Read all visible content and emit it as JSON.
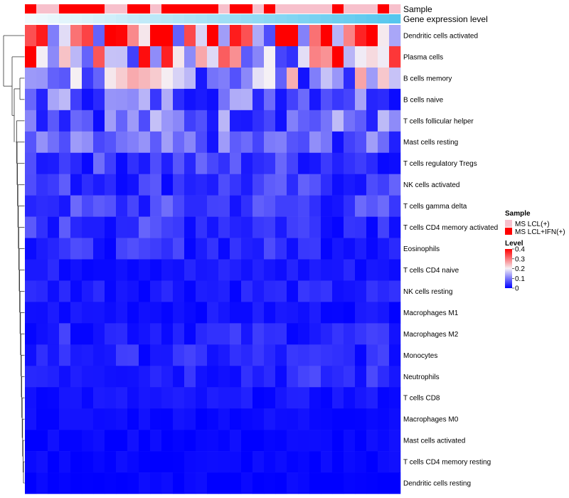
{
  "chart_data": {
    "type": "heatmap",
    "annotation_tracks": [
      {
        "name": "Sample",
        "label": "Sample"
      },
      {
        "name": "Gene expression level",
        "label": "Gene expression level"
      }
    ],
    "sample_groups": [
      {
        "name": "MS LCL(+)",
        "color": "#f7c0cc"
      },
      {
        "name": "MS LCL+IFN(+)",
        "color": "#ff0000"
      }
    ],
    "sample_annotation": [
      1,
      0,
      0,
      1,
      1,
      1,
      1,
      0,
      0,
      1,
      1,
      0,
      1,
      1,
      1,
      1,
      1,
      0,
      1,
      1,
      0,
      1,
      0,
      0,
      0,
      0,
      0,
      1,
      0,
      0,
      0,
      1,
      0
    ],
    "expression_gradient": {
      "from": "#f2fafd",
      "to": "#56c6ee"
    },
    "rows": [
      "Dendritic cells activated",
      "Plasma cells",
      "B cells memory",
      "B cells naive",
      "T cells follicular helper",
      "Mast cells resting",
      "T cells regulatory  Tregs",
      "NK cells activated",
      "T cells gamma delta",
      "T cells CD4 memory activated",
      "Eosinophils",
      "T cells CD4 naive",
      "NK cells resting",
      "Macrophages M1",
      "Macrophages M2",
      "Monocytes",
      "Neutrophils",
      "T cells CD8",
      "Macrophages M0",
      "Mast cells activated",
      "T cells CD4 memory resting",
      "Dendritic cells resting"
    ],
    "row_means": [
      0.34,
      0.22,
      0.14,
      0.09,
      0.09,
      0.07,
      0.05,
      0.045,
      0.05,
      0.045,
      0.035,
      0.02,
      0.025,
      0.015,
      0.03,
      0.03,
      0.035,
      0.015,
      0.01,
      0.005,
      0.005,
      0.002
    ],
    "n_columns": 33,
    "color_scale": {
      "title": "Level",
      "min": 0,
      "max": 0.4,
      "ticks": [
        "0.4",
        "0.3",
        "0.2",
        "0.1",
        "0"
      ],
      "tick_values": [
        0.4,
        0.3,
        0.2,
        0.1,
        0
      ],
      "low": "#0000ff",
      "mid": "#f5f0f5",
      "high": "#ff0000",
      "mid_value": 0.2
    },
    "legend": {
      "sample_title": "Sample",
      "level_title": "Level",
      "placement": "right"
    }
  }
}
